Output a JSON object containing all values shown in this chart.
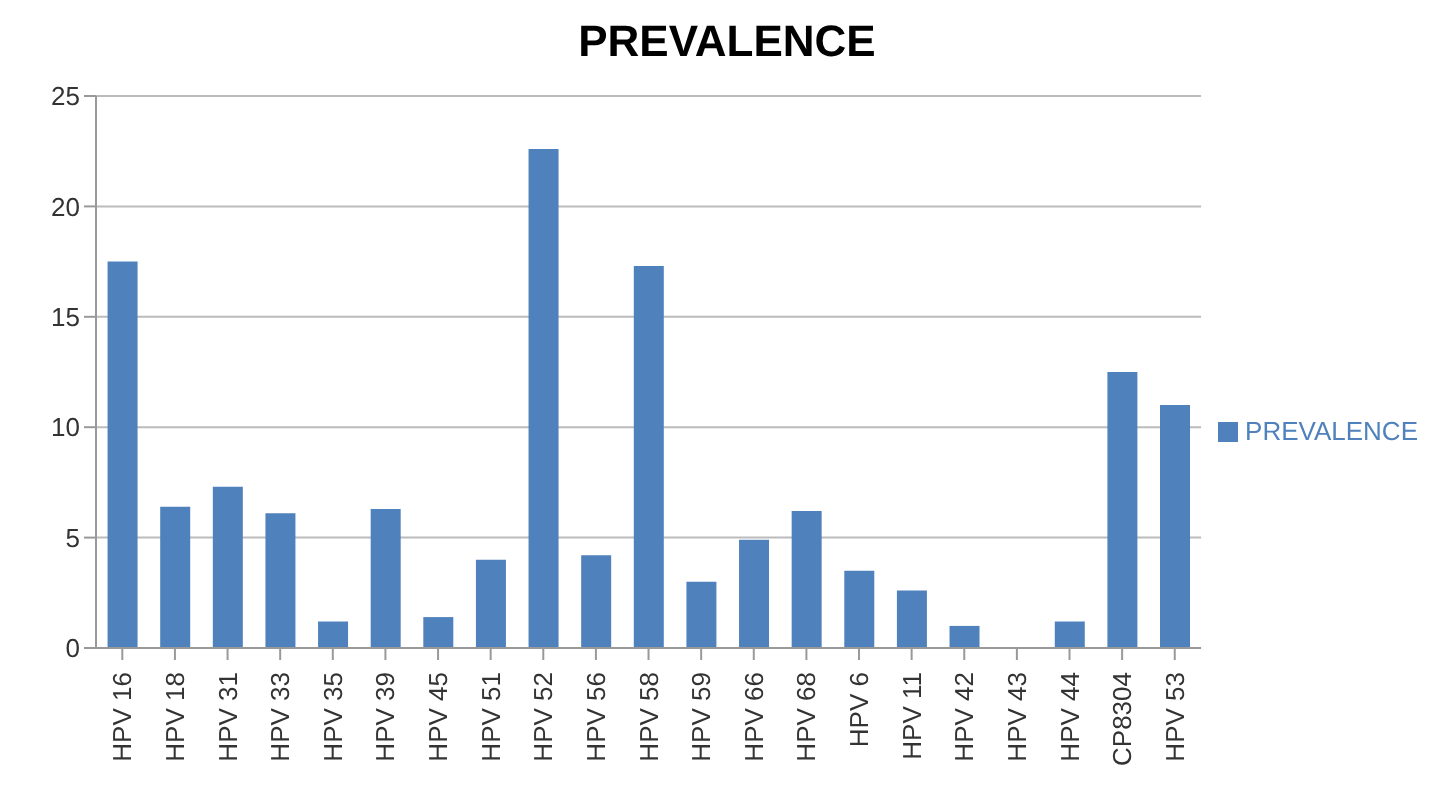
{
  "chart_data": {
    "type": "bar",
    "title": "PREVALENCE",
    "categories": [
      "HPV 16",
      "HPV 18",
      "HPV 31",
      "HPV 33",
      "HPV 35",
      "HPV 39",
      "HPV 45",
      "HPV 51",
      "HPV 52",
      "HPV 56",
      "HPV 58",
      "HPV 59",
      "HPV 66",
      "HPV 68",
      "HPV 6",
      "HPV 11",
      "HPV 42",
      "HPV 43",
      "HPV 44",
      "CP8304",
      "HPV 53"
    ],
    "series": [
      {
        "name": "PREVALENCE",
        "color": "#4f81bd",
        "values": [
          17.5,
          6.4,
          7.3,
          6.1,
          1.2,
          6.3,
          1.4,
          4.0,
          22.6,
          4.2,
          17.3,
          3.0,
          4.9,
          6.2,
          3.5,
          2.6,
          1.0,
          0,
          1.2,
          12.5,
          11.0
        ]
      }
    ],
    "ylim": [
      0,
      25
    ],
    "yticks": [
      0,
      5,
      10,
      15,
      20,
      25
    ],
    "grid": "y",
    "legend": "right"
  }
}
